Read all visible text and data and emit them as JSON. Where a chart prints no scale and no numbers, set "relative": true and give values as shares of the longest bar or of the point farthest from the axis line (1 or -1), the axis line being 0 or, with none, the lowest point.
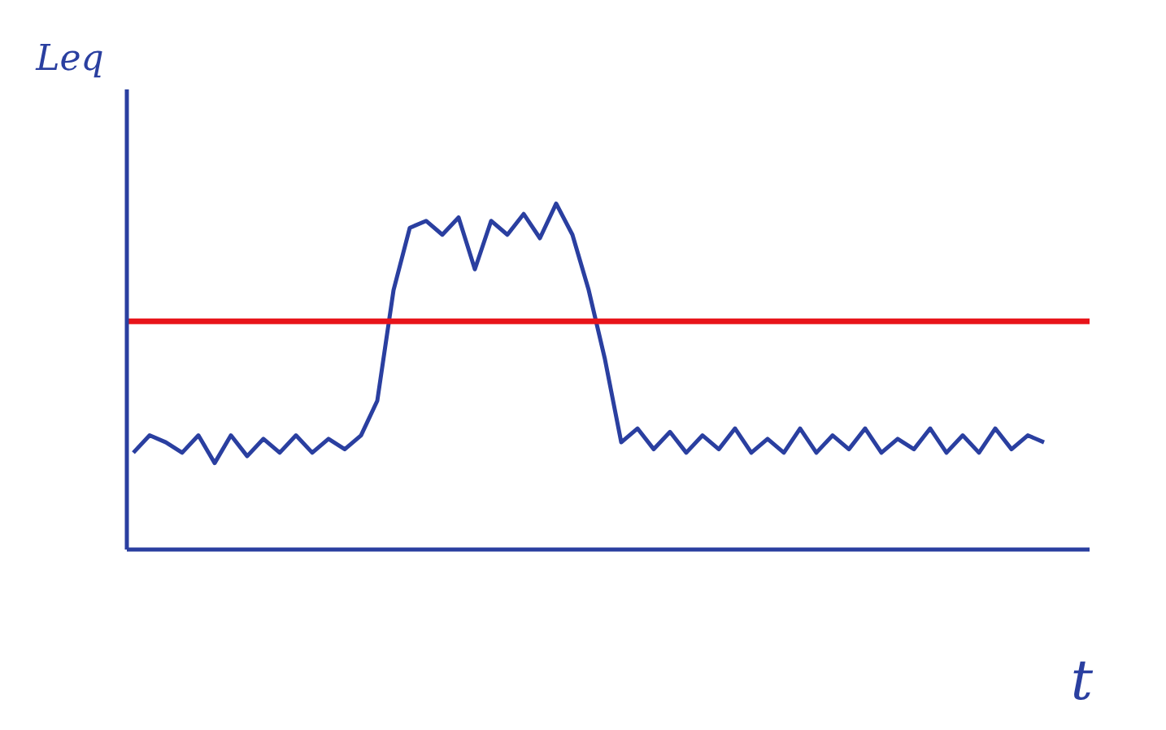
{
  "chart_data": {
    "type": "line",
    "relative": true,
    "xlabel": "t",
    "ylabel": "Leq",
    "grid": false,
    "legend": false,
    "marker": "none",
    "line_style": "solid",
    "categories": [
      null,
      null,
      null,
      null,
      null,
      null,
      null,
      null,
      null,
      null,
      null,
      null,
      null,
      null,
      null,
      null,
      null,
      null,
      null,
      null,
      null,
      null,
      null,
      null,
      null,
      null,
      null,
      null,
      null,
      null,
      null,
      null,
      null,
      null,
      null,
      null,
      null,
      null,
      null,
      null,
      null,
      null,
      null,
      null,
      null,
      null,
      null,
      null,
      null,
      null,
      null,
      null,
      null,
      null,
      null,
      null,
      null
    ],
    "series": [
      {
        "color": "#2a3fa0",
        "values": [
          0.28,
          0.33,
          0.31,
          0.28,
          0.33,
          0.25,
          0.33,
          0.27,
          0.32,
          0.28,
          0.33,
          0.28,
          0.32,
          0.29,
          0.33,
          0.43,
          0.75,
          0.93,
          0.95,
          0.91,
          0.96,
          0.81,
          0.95,
          0.91,
          0.97,
          0.9,
          1.0,
          0.91,
          0.75,
          0.55,
          0.31,
          0.35,
          0.29,
          0.34,
          0.28,
          0.33,
          0.29,
          0.35,
          0.28,
          0.32,
          0.28,
          0.35,
          0.28,
          0.33,
          0.29,
          0.35,
          0.28,
          0.32,
          0.29,
          0.35,
          0.28,
          0.33,
          0.28,
          0.35,
          0.29,
          0.33,
          0.31
        ]
      }
    ],
    "ref_lines": [
      {
        "axis": "y",
        "value": 0.66,
        "color": "#e8141a",
        "line_style": "solid"
      }
    ]
  }
}
